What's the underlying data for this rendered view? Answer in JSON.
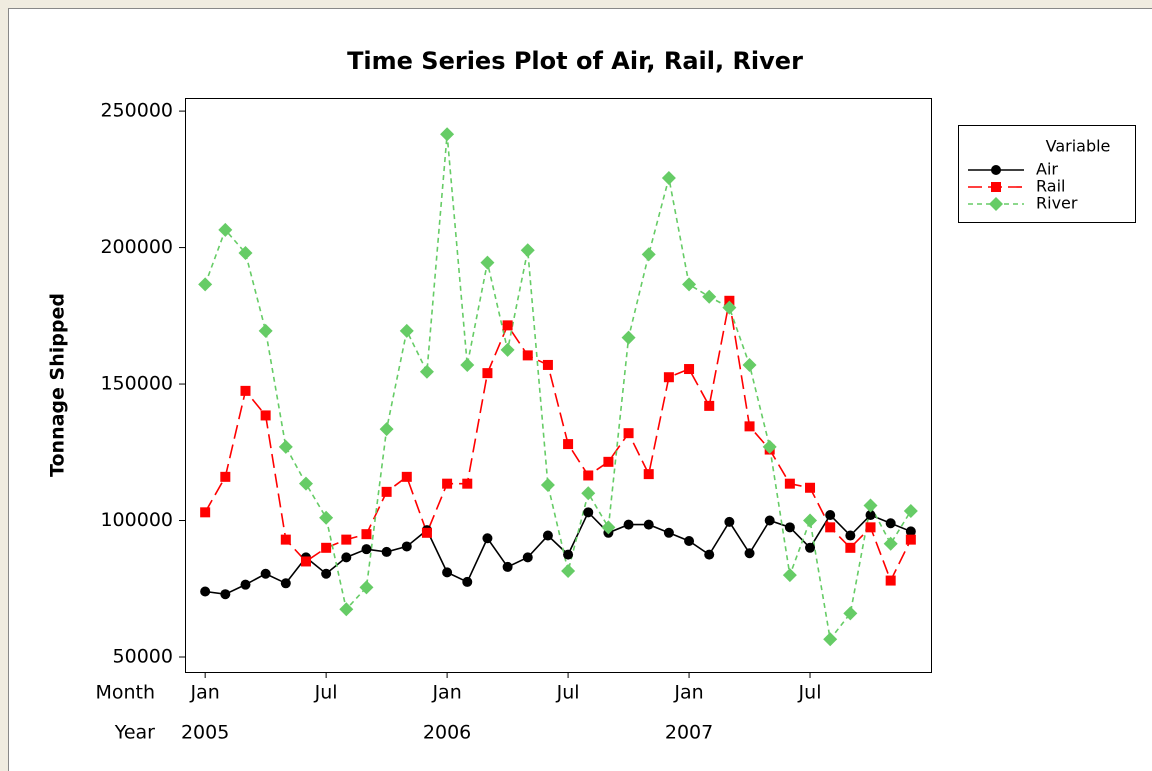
{
  "chart_data": {
    "type": "line",
    "title": "Time Series Plot of Air, Rail, River",
    "y_label": "Tonnage Shipped",
    "x_row_labels": [
      "Month",
      "Year"
    ],
    "categories": [
      "Jan",
      null,
      null,
      null,
      null,
      null,
      "Jul",
      null,
      null,
      null,
      null,
      null,
      "Jan",
      null,
      null,
      null,
      null,
      null,
      "Jul",
      null,
      null,
      null,
      null,
      null,
      "Jan",
      null,
      null,
      null,
      null,
      null,
      "Jul",
      null,
      null,
      null,
      null,
      null
    ],
    "years": [
      "2005",
      null,
      null,
      null,
      null,
      null,
      null,
      null,
      null,
      null,
      null,
      null,
      "2006",
      null,
      null,
      null,
      null,
      null,
      null,
      null,
      null,
      null,
      null,
      null,
      "2007",
      null,
      null,
      null,
      null,
      null,
      null,
      null,
      null,
      null,
      null,
      null
    ],
    "ylim": [
      44500,
      254800
    ],
    "yticks": [
      50000,
      100000,
      150000,
      200000,
      250000
    ],
    "legend_title": "Variable",
    "legend": "right",
    "series": [
      {
        "name": "Air",
        "color": "#000000",
        "marker": "circle",
        "line_style": "solid",
        "values": [
          74000,
          73000,
          76500,
          80500,
          77000,
          86500,
          80500,
          86500,
          89500,
          88500,
          90500,
          96500,
          81000,
          77500,
          93500,
          83000,
          86500,
          94500,
          87500,
          103000,
          95500,
          98500,
          98500,
          95500,
          92500,
          87500,
          99500,
          88000,
          100000,
          97500,
          90000,
          102000,
          94500,
          102000,
          99000,
          96000
        ]
      },
      {
        "name": "Rail",
        "color": "#ff0000",
        "marker": "square",
        "line_style": "long-dash",
        "values": [
          103000,
          116000,
          147500,
          138500,
          93000,
          85000,
          90000,
          93000,
          95000,
          110500,
          116000,
          95500,
          113500,
          113500,
          154000,
          171500,
          160500,
          157000,
          128000,
          116500,
          121500,
          132000,
          117000,
          152500,
          155500,
          142000,
          180500,
          134500,
          126000,
          113500,
          112000,
          97500,
          90000,
          97500,
          78000,
          93000
        ]
      },
      {
        "name": "River",
        "color": "#66cc66",
        "marker": "diamond",
        "line_style": "short-dash",
        "values": [
          186500,
          206500,
          198000,
          169500,
          127000,
          113500,
          101000,
          67500,
          75500,
          133500,
          169500,
          154500,
          241500,
          157000,
          194500,
          162500,
          199000,
          113000,
          81500,
          110000,
          97500,
          167000,
          197500,
          225500,
          186500,
          182000,
          178000,
          157000,
          127000,
          80000,
          100000,
          56500,
          66000,
          105500,
          91500,
          103500
        ]
      }
    ]
  }
}
